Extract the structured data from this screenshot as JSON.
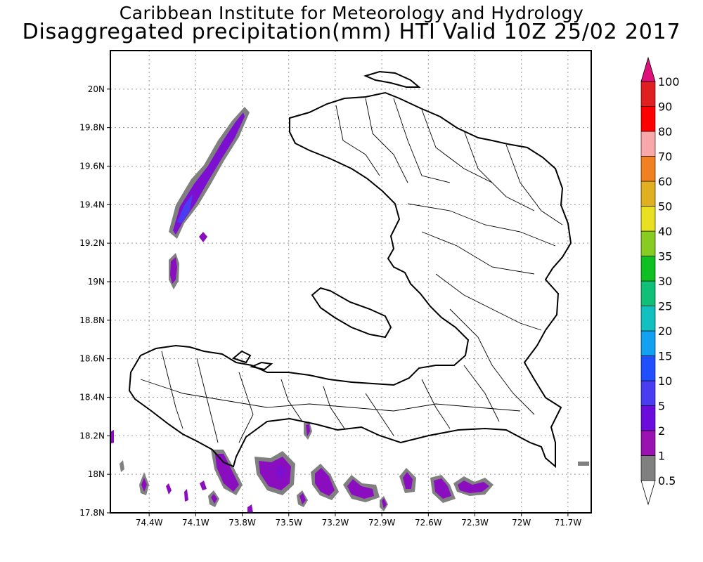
{
  "titles": {
    "line1": "Caribbean Institute for Meteorology and Hydrology",
    "line2": "Disaggregated precipitation(mm) HTI Valid 10Z 25/02 2017"
  },
  "map": {
    "region": "Haiti",
    "lon_range": [
      -74.65,
      -71.55
    ],
    "lat_range": [
      17.8,
      20.2
    ],
    "grid": true,
    "x_ticks": [
      {
        "value": -74.4,
        "label": "74.4W"
      },
      {
        "value": -74.1,
        "label": "74.1W"
      },
      {
        "value": -73.8,
        "label": "73.8W"
      },
      {
        "value": -73.5,
        "label": "73.5W"
      },
      {
        "value": -73.2,
        "label": "73.2W"
      },
      {
        "value": -72.9,
        "label": "72.9W"
      },
      {
        "value": -72.6,
        "label": "72.6W"
      },
      {
        "value": -72.3,
        "label": "72.3W"
      },
      {
        "value": -72.0,
        "label": "72W"
      },
      {
        "value": -71.7,
        "label": "71.7W"
      }
    ],
    "y_ticks": [
      {
        "value": 17.8,
        "label": "17.8N"
      },
      {
        "value": 18.0,
        "label": "18N"
      },
      {
        "value": 18.2,
        "label": "18.2N"
      },
      {
        "value": 18.4,
        "label": "18.4N"
      },
      {
        "value": 18.6,
        "label": "18.6N"
      },
      {
        "value": 18.8,
        "label": "18.8N"
      },
      {
        "value": 19.0,
        "label": "19N"
      },
      {
        "value": 19.2,
        "label": "19.2N"
      },
      {
        "value": 19.4,
        "label": "19.4N"
      },
      {
        "value": 19.6,
        "label": "19.6N"
      },
      {
        "value": 19.8,
        "label": "19.8N"
      },
      {
        "value": 20.0,
        "label": "20N"
      }
    ]
  },
  "colorbar": {
    "levels": [
      {
        "label": "0.5",
        "color": "#ffffff"
      },
      {
        "label": "1",
        "color": "#808080"
      },
      {
        "label": "2",
        "color": "#9a12b0"
      },
      {
        "label": "5",
        "color": "#6a0ddc"
      },
      {
        "label": "10",
        "color": "#4a3cf0"
      },
      {
        "label": "15",
        "color": "#1f4fff"
      },
      {
        "label": "20",
        "color": "#12a0f0"
      },
      {
        "label": "25",
        "color": "#12c0c0"
      },
      {
        "label": "30",
        "color": "#10c078"
      },
      {
        "label": "35",
        "color": "#10c020"
      },
      {
        "label": "40",
        "color": "#88cc22"
      },
      {
        "label": "50",
        "color": "#e8e020"
      },
      {
        "label": "60",
        "color": "#e0b020"
      },
      {
        "label": "70",
        "color": "#f08020"
      },
      {
        "label": "80",
        "color": "#f8a8a8"
      },
      {
        "label": "90",
        "color": "#ff0000"
      },
      {
        "label": "100",
        "color": "#e02020"
      }
    ],
    "top_arrow_color": "#e0107a",
    "bottom_arrow_color": "#ffffff"
  }
}
